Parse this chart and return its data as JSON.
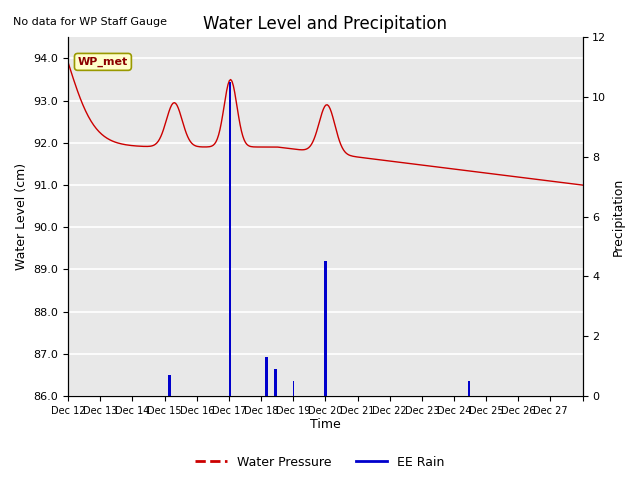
{
  "title": "Water Level and Precipitation",
  "subtitle": "No data for WP Staff Gauge",
  "ylabel_left": "Water Level (cm)",
  "ylabel_right": "Precipitation",
  "xlabel": "Time",
  "annotation": "WP_met",
  "ylim_left": [
    86.0,
    94.5
  ],
  "ylim_right": [
    0,
    12
  ],
  "yticks_left": [
    86.0,
    87.0,
    88.0,
    89.0,
    90.0,
    91.0,
    92.0,
    93.0,
    94.0
  ],
  "yticks_right": [
    0,
    2,
    4,
    6,
    8,
    10,
    12
  ],
  "xtick_positions": [
    0,
    1,
    2,
    3,
    4,
    5,
    6,
    7,
    8,
    9,
    10,
    11,
    12,
    13,
    14,
    15,
    16
  ],
  "xtick_labels": [
    "Dec 12",
    "Dec 13",
    "Dec 14",
    "Dec 15",
    "Dec 16",
    "Dec 17",
    "Dec 18",
    "Dec 19",
    "Dec 20",
    "Dec 21",
    "Dec 22",
    "Dec 23",
    "Dec 24",
    "Dec 25",
    "Dec 26",
    "Dec 27",
    ""
  ],
  "legend_labels": [
    "Water Pressure",
    "EE Rain"
  ],
  "legend_colors": [
    "#cc0000",
    "#0000cc"
  ],
  "bg_color": "#e8e8e8",
  "fig_bg": "#ffffff"
}
